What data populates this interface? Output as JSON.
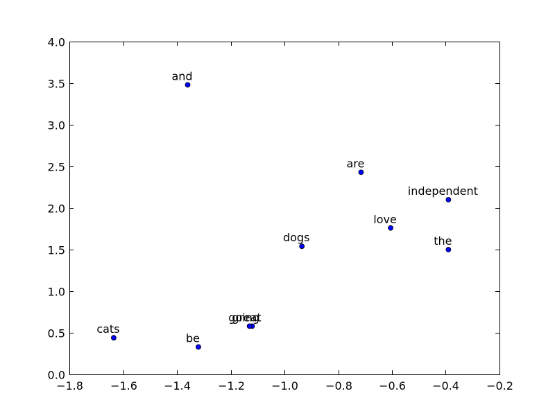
{
  "chart_data": {
    "type": "scatter",
    "title": "",
    "xlabel": "",
    "ylabel": "",
    "xlim": [
      -1.8,
      -0.2
    ],
    "ylim": [
      0.0,
      4.0
    ],
    "grid": false,
    "xticks": [
      -1.8,
      -1.6,
      -1.4,
      -1.2,
      -1.0,
      -0.8,
      -0.6,
      -0.4,
      -0.2
    ],
    "xtick_labels": [
      "−1.8",
      "−1.6",
      "−1.4",
      "−1.2",
      "−1.0",
      "−0.8",
      "−0.6",
      "−0.4",
      "−0.2"
    ],
    "yticks": [
      0.0,
      0.5,
      1.0,
      1.5,
      2.0,
      2.5,
      3.0,
      3.5,
      4.0
    ],
    "ytick_labels": [
      "0.0",
      "0.5",
      "1.0",
      "1.5",
      "2.0",
      "2.5",
      "3.0",
      "3.5",
      "4.0"
    ],
    "marker_color": "#0000ff",
    "points": [
      {
        "label": "and",
        "x": -1.36,
        "y": 3.48
      },
      {
        "label": "are",
        "x": -0.715,
        "y": 2.43
      },
      {
        "label": "independent",
        "x": -0.39,
        "y": 2.1
      },
      {
        "label": "love",
        "x": -0.605,
        "y": 1.76
      },
      {
        "label": "dogs",
        "x": -0.935,
        "y": 1.54
      },
      {
        "label": "the",
        "x": -0.39,
        "y": 1.5
      },
      {
        "label": "great",
        "x": -1.12,
        "y": 0.58
      },
      {
        "label": "going",
        "x": -1.13,
        "y": 0.58
      },
      {
        "label": "cats",
        "x": -1.635,
        "y": 0.44
      },
      {
        "label": "be",
        "x": -1.32,
        "y": 0.33
      }
    ]
  }
}
